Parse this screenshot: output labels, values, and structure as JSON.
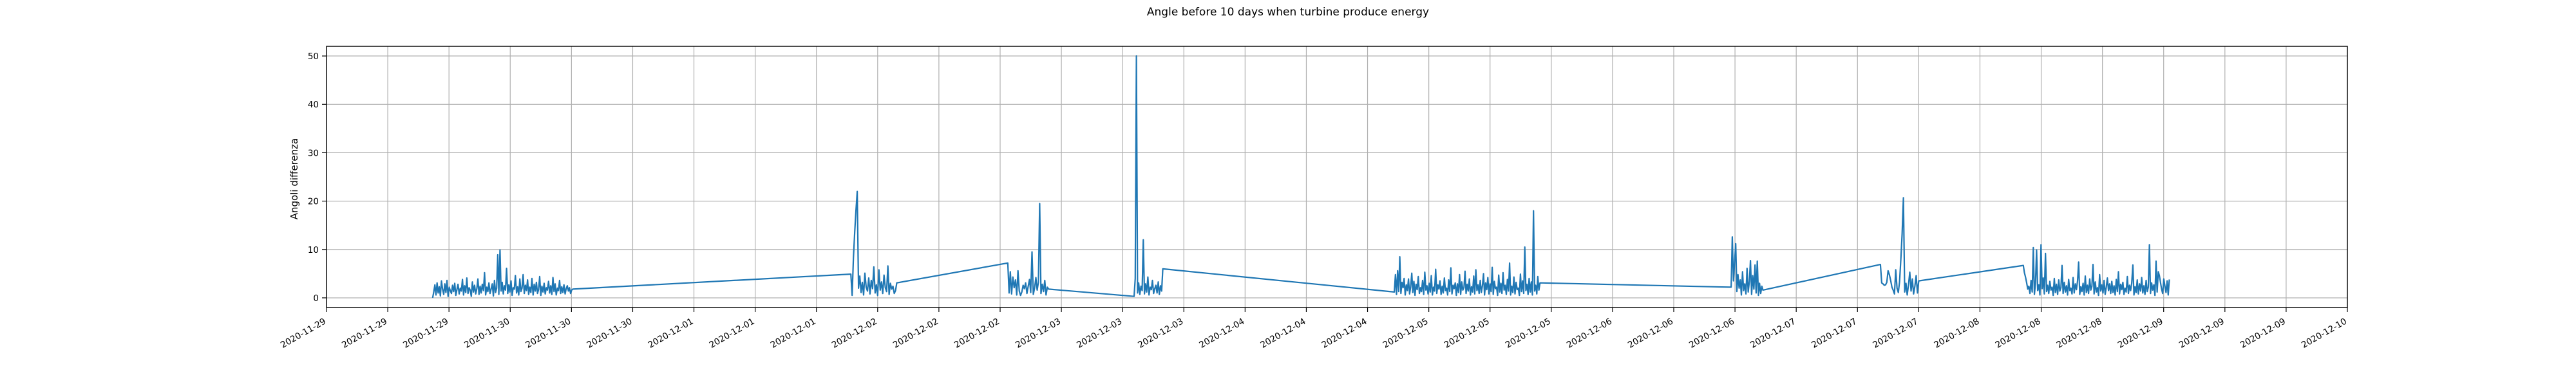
{
  "chart_data": {
    "type": "line",
    "title": "Angle before 10 days when turbine produce energy",
    "xlabel": "",
    "ylabel": "Angoli differenza",
    "grid": true,
    "x_is_date": true,
    "xlim": [
      "2020-11-28T12:00",
      "2020-12-09T12:00"
    ],
    "ylim": [
      -2,
      52
    ],
    "yticks": [
      0,
      10,
      20,
      30,
      40,
      50
    ],
    "xticks": [
      {
        "t": "2020-11-28T12:00",
        "label": "2020-11-29"
      },
      {
        "t": "2020-11-28T20:00",
        "label": "2020-11-29"
      },
      {
        "t": "2020-11-29T04:00",
        "label": "2020-11-29"
      },
      {
        "t": "2020-11-29T12:00",
        "label": "2020-11-30"
      },
      {
        "t": "2020-11-29T20:00",
        "label": "2020-11-30"
      },
      {
        "t": "2020-11-30T04:00",
        "label": "2020-11-30"
      },
      {
        "t": "2020-11-30T12:00",
        "label": "2020-12-01"
      },
      {
        "t": "2020-11-30T20:00",
        "label": "2020-12-01"
      },
      {
        "t": "2020-12-01T04:00",
        "label": "2020-12-01"
      },
      {
        "t": "2020-12-01T12:00",
        "label": "2020-12-02"
      },
      {
        "t": "2020-12-01T20:00",
        "label": "2020-12-02"
      },
      {
        "t": "2020-12-02T04:00",
        "label": "2020-12-02"
      },
      {
        "t": "2020-12-02T12:00",
        "label": "2020-12-03"
      },
      {
        "t": "2020-12-02T20:00",
        "label": "2020-12-03"
      },
      {
        "t": "2020-12-03T04:00",
        "label": "2020-12-03"
      },
      {
        "t": "2020-12-03T12:00",
        "label": "2020-12-04"
      },
      {
        "t": "2020-12-03T20:00",
        "label": "2020-12-04"
      },
      {
        "t": "2020-12-04T04:00",
        "label": "2020-12-04"
      },
      {
        "t": "2020-12-04T12:00",
        "label": "2020-12-05"
      },
      {
        "t": "2020-12-04T20:00",
        "label": "2020-12-05"
      },
      {
        "t": "2020-12-05T04:00",
        "label": "2020-12-05"
      },
      {
        "t": "2020-12-05T12:00",
        "label": "2020-12-06"
      },
      {
        "t": "2020-12-05T20:00",
        "label": "2020-12-06"
      },
      {
        "t": "2020-12-06T04:00",
        "label": "2020-12-06"
      },
      {
        "t": "2020-12-06T12:00",
        "label": "2020-12-07"
      },
      {
        "t": "2020-12-06T20:00",
        "label": "2020-12-07"
      },
      {
        "t": "2020-12-07T04:00",
        "label": "2020-12-07"
      },
      {
        "t": "2020-12-07T12:00",
        "label": "2020-12-08"
      },
      {
        "t": "2020-12-07T20:00",
        "label": "2020-12-08"
      },
      {
        "t": "2020-12-08T04:00",
        "label": "2020-12-08"
      },
      {
        "t": "2020-12-08T12:00",
        "label": "2020-12-09"
      },
      {
        "t": "2020-12-08T20:00",
        "label": "2020-12-09"
      },
      {
        "t": "2020-12-09T04:00",
        "label": "2020-12-09"
      },
      {
        "t": "2020-12-09T12:00",
        "label": "2020-12-10"
      }
    ],
    "series": [
      {
        "color": "#1f77b4",
        "segments": [
          {
            "start": "2020-11-29T01:52",
            "step_minutes": 8.65,
            "values": [
              0,
              1.2,
              2.7,
              0.6,
              3.1,
              1.0,
              2.3,
              0.4,
              3.5,
              1.8,
              0.7,
              2.9,
              1.1,
              3.6,
              0.3,
              2.2,
              1.5,
              0.9,
              2.6,
              1.3,
              3.0,
              0.5,
              1.7,
              2.8,
              0.8,
              2.0,
              1.4,
              3.8,
              0.6,
              2.5,
              1.1,
              4.1,
              0.9,
              2.1,
              1.6,
              0.3,
              3.3,
              1.2,
              2.6,
              0.8,
              1.9,
              3.9,
              0.7,
              2.4,
              1.0,
              2.8,
              1.5,
              5.2,
              0.6,
              2.2,
              1.3,
              3.1,
              0.9,
              1.8,
              2.9,
              0.4,
              3.6,
              1.1,
              2.0,
              8.9,
              0.7,
              9.9,
              1.4,
              3.2,
              0.8,
              2.5,
              1.6,
              6.1,
              0.9,
              2.7,
              1.2,
              3.5,
              0.5,
              2.1,
              1.8,
              4.6,
              1.0,
              2.3,
              0.6,
              3.9,
              1.3,
              2.0,
              4.8,
              0.9,
              2.6,
              1.5,
              3.7,
              0.7,
              2.2,
              1.1,
              4.0,
              0.6,
              2.8,
              1.4,
              3.2,
              0.9,
              1.7,
              4.4,
              0.5,
              2.4,
              1.2,
              3.0,
              0.8,
              2.1,
              1.6,
              3.4,
              1.0,
              2.5,
              0.7,
              4.2,
              1.3,
              2.9,
              0.6,
              2.0,
              1.5,
              3.6,
              0.9,
              2.3,
              1.1,
              2.7,
              0.8,
              1.9,
              2.5,
              1.4,
              2.1,
              0.9,
              1.6,
              1.8
            ]
          },
          {
            "start": "2020-12-01T08:30",
            "step_minutes": 10,
            "values": [
              4.9,
              0.5,
              8.3,
              13.6,
              18.0,
              22.0,
              2.0,
              4.5,
              1.1,
              3.2,
              0.6,
              5.1,
              2.2,
              1.4,
              4.1,
              0.8,
              3.6,
              1.9,
              6.4,
              1.0,
              2.7,
              0.5,
              5.8,
              1.6,
              3.3,
              0.9,
              4.7,
              2.1,
              1.3,
              6.6,
              0.7,
              3.0,
              1.8,
              2.4,
              0.9,
              1.5,
              3.1
            ]
          },
          {
            "start": "2020-12-02T05:00",
            "step_minutes": 10,
            "values": [
              7.2,
              1.0,
              5.4,
              0.8,
              4.3,
              2.1,
              3.7,
              0.6,
              5.6,
              1.4,
              0.5,
              1.2,
              2.6,
              1.9,
              3.1,
              0.9,
              2.4,
              3.8,
              1.1,
              9.5,
              0.7,
              2.0,
              4.2,
              1.6,
              3.2,
              19.5,
              0.9,
              2.8,
              1.3,
              3.6,
              0.6,
              2.2,
              1.8
            ]
          },
          {
            "start": "2020-12-02T21:30",
            "step_minutes": 9,
            "values": [
              0.3,
              4.0,
              50.0,
              1.0,
              3.1,
              0.7,
              2.4,
              1.5,
              12.0,
              0.8,
              2.9,
              1.2,
              4.3,
              0.6,
              2.2,
              1.7,
              3.6,
              0.9,
              1.9,
              2.6,
              1.0,
              3.3,
              0.7,
              2.5,
              1.4,
              6.0
            ]
          },
          {
            "start": "2020-12-04T07:30",
            "step_minutes": 8.52,
            "values": [
              1.2,
              4.8,
              0.7,
              5.6,
              1.3,
              8.5,
              0.9,
              3.2,
              2.1,
              4.0,
              0.6,
              2.7,
              1.5,
              3.9,
              0.8,
              2.3,
              5.1,
              1.1,
              3.4,
              0.5,
              2.8,
              1.7,
              4.4,
              0.9,
              2.1,
              1.3,
              3.6,
              0.7,
              5.3,
              1.6,
              2.5,
              0.8,
              3.0,
              1.2,
              4.6,
              0.6,
              2.2,
              1.4,
              5.9,
              0.9,
              2.7,
              1.8,
              3.5,
              0.7,
              2.4,
              1.0,
              4.1,
              1.5,
              2.0,
              0.6,
              3.7,
              1.3,
              6.2,
              0.8,
              2.6,
              1.9,
              3.1,
              0.5,
              2.9,
              1.1,
              4.8,
              0.7,
              3.3,
              1.6,
              2.1,
              5.5,
              0.9,
              2.8,
              1.4,
              3.9,
              0.6,
              2.3,
              1.2,
              4.5,
              0.8,
              5.8,
              1.5,
              2.7,
              0.9,
              3.6,
              1.1,
              2.5,
              5.0,
              0.6,
              3.1,
              1.7,
              4.2,
              0.8,
              2.9,
              1.3,
              6.3,
              0.7,
              3.4,
              1.9,
              2.2,
              0.5,
              4.7,
              1.2,
              3.0,
              0.9,
              5.2,
              1.6,
              2.6,
              0.7,
              3.8,
              1.4,
              7.2,
              0.6,
              2.4,
              1.1,
              4.3,
              0.8,
              3.2,
              1.7,
              2.0,
              0.5,
              4.9,
              1.3,
              3.5,
              0.9,
              10.5,
              1.5,
              2.8,
              0.7,
              4.0,
              1.2,
              3.3,
              0.6,
              18.0,
              1.4,
              2.6,
              0.8,
              4.4,
              1.6,
              3.1
            ]
          },
          {
            "start": "2020-12-06T03:30",
            "step_minutes": 8.9,
            "values": [
              2.2,
              12.6,
              3.5,
              7.2,
              11.2,
              1.3,
              4.8,
              2.0,
              3.7,
              0.6,
              5.4,
              1.5,
              2.9,
              0.8,
              6.1,
              1.2,
              3.4,
              7.7,
              0.7,
              4.6,
              1.8,
              6.8,
              1.0,
              7.6,
              0.5,
              3.0,
              0.9,
              2.4,
              1.6
            ]
          },
          {
            "start": "2020-12-06T23:00",
            "step_minutes": 10,
            "values": [
              6.9,
              3.1,
              2.9,
              2.6,
              2.7,
              3.2,
              5.6,
              4.8,
              3.6,
              2.2,
              1.6,
              0.8,
              5.8,
              2.0,
              1.1,
              3.3,
              7.9,
              13.2,
              20.7,
              1.2,
              3.0,
              0.6,
              2.7,
              5.3,
              1.4,
              3.9,
              0.8,
              2.4,
              4.6,
              1.0,
              3.5
            ]
          },
          {
            "start": "2020-12-07T17:40",
            "step_minutes": 8.67,
            "values": [
              6.7,
              5.2,
              4.3,
              3.1,
              1.8,
              2.4,
              0.9,
              3.6,
              1.2,
              10.4,
              0.7,
              3.0,
              9.9,
              1.5,
              2.7,
              0.6,
              11.0,
              1.9,
              4.1,
              0.8,
              9.2,
              1.3,
              2.6,
              0.9,
              3.4,
              1.6,
              2.2,
              0.5,
              4.0,
              1.1,
              2.8,
              0.7,
              3.7,
              1.4,
              2.1,
              6.7,
              0.9,
              3.2,
              1.2,
              2.5,
              0.6,
              3.8,
              1.5,
              2.0,
              0.8,
              4.2,
              1.0,
              2.9,
              1.7,
              3.5,
              7.4,
              0.7,
              2.3,
              1.3,
              3.0,
              0.6,
              4.5,
              1.1,
              2.6,
              0.9,
              3.9,
              1.6,
              2.4,
              6.9,
              0.8,
              3.3,
              1.2,
              2.1,
              0.5,
              4.8,
              1.4,
              2.7,
              1.0,
              3.6,
              0.7,
              2.2,
              4.1,
              1.5,
              2.9,
              0.9,
              3.4,
              1.1,
              2.5,
              0.6,
              3.8,
              1.3,
              5.4,
              0.8,
              2.8,
              1.7,
              3.2,
              0.7,
              2.0,
              1.2,
              4.4,
              0.9,
              2.6,
              1.5,
              3.0,
              6.8,
              0.6,
              2.3,
              1.1,
              3.7,
              0.8,
              2.9,
              1.4,
              4.2,
              1.0,
              2.5,
              0.7,
              3.6,
              1.3,
              2.2,
              11.0,
              0.9,
              3.1,
              1.6,
              2.7,
              0.5,
              7.6,
              1.2,
              5.4,
              4.6,
              3.2,
              1.8,
              0.9,
              3.9,
              2.4,
              1.1,
              3.5,
              0.6,
              3.8
            ]
          }
        ]
      }
    ]
  }
}
